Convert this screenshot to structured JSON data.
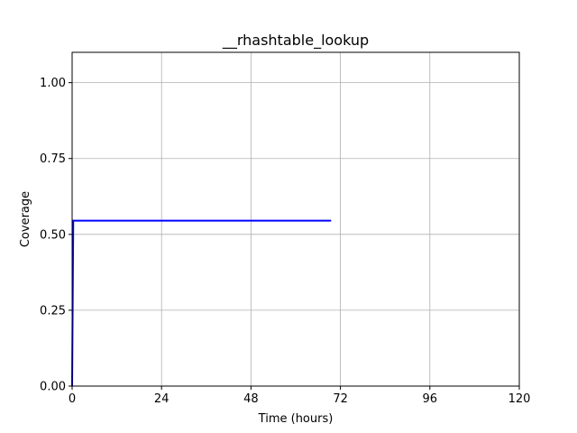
{
  "chart_data": {
    "type": "line",
    "title": "__rhashtable_lookup",
    "xlabel": "Time (hours)",
    "ylabel": "Coverage",
    "xlim": [
      0,
      120
    ],
    "ylim": [
      0,
      1.1
    ],
    "xticks": [
      0,
      24,
      48,
      72,
      96,
      120
    ],
    "yticks": [
      0.0,
      0.25,
      0.5,
      0.75,
      1.0
    ],
    "xtick_labels": [
      "0",
      "24",
      "48",
      "72",
      "96",
      "120"
    ],
    "ytick_labels": [
      "0.00",
      "0.25",
      "0.50",
      "0.75",
      "1.00"
    ],
    "grid": true,
    "series": [
      {
        "color": "#0000ff",
        "x": [
          0,
          0.3,
          0.3,
          69.5
        ],
        "y": [
          0,
          0.545,
          0.545,
          0.545
        ]
      }
    ]
  }
}
